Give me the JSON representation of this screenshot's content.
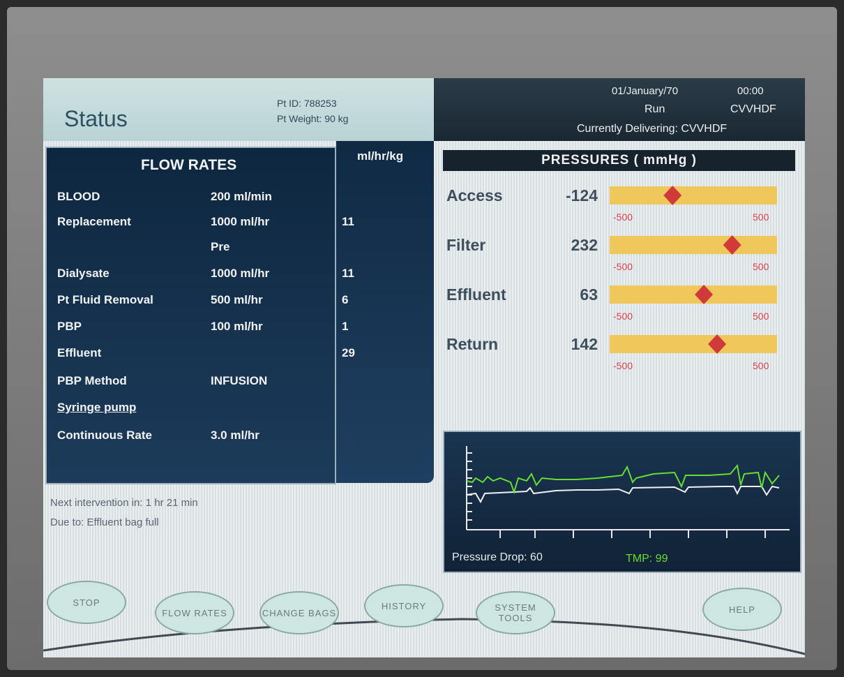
{
  "header": {
    "title": "Status",
    "patient_id": "Pt ID: 788253",
    "patient_weight": "Pt Weight: 90 kg",
    "date": "01/January/70",
    "time": "00:00",
    "state": "Run",
    "mode": "CVVHDF",
    "delivering": "Currently Delivering: CVVHDF"
  },
  "flow_rates": {
    "title": "FLOW RATES",
    "unit_header": "ml/hr/kg",
    "rows": [
      {
        "label": "BLOOD",
        "value": "200 ml/min"
      },
      {
        "label": "Replacement",
        "value": "1000 ml/hr",
        "per_kg": "11"
      },
      {
        "value": "Pre"
      },
      {
        "label": "Dialysate",
        "value": "1000 ml/hr",
        "per_kg": "11"
      },
      {
        "label": "Pt Fluid Removal",
        "value": "500 ml/hr",
        "per_kg": "6"
      },
      {
        "label": "PBP",
        "value": "100 ml/hr",
        "per_kg": "1"
      },
      {
        "label": "Effluent",
        "per_kg": "29"
      },
      {
        "label": "PBP Method",
        "value": "INFUSION"
      },
      {
        "label": "Syringe pump"
      },
      {
        "label": "Continuous Rate",
        "value": "3.0 ml/hr"
      }
    ]
  },
  "pressures": {
    "title": "PRESSURES ( mmHg )",
    "items": [
      {
        "name": "Access",
        "value": -124,
        "min": -500,
        "max": 500
      },
      {
        "name": "Filter",
        "value": 232,
        "min": -500,
        "max": 500
      },
      {
        "name": "Effluent",
        "value": 63,
        "min": -500,
        "max": 500
      },
      {
        "name": "Return",
        "value": 142,
        "min": -500,
        "max": 500
      }
    ]
  },
  "trend": {
    "pressure_drop": "Pressure Drop: 60",
    "tmp": "TMP: 99"
  },
  "intervention": {
    "next": "Next intervention in: 1 hr 21 min",
    "due": "Due to: Effluent bag full"
  },
  "buttons": [
    "STOP",
    "FLOW RATES",
    "CHANGE BAGS",
    "HISTORY",
    "SYSTEM TOOLS",
    "HELP"
  ]
}
